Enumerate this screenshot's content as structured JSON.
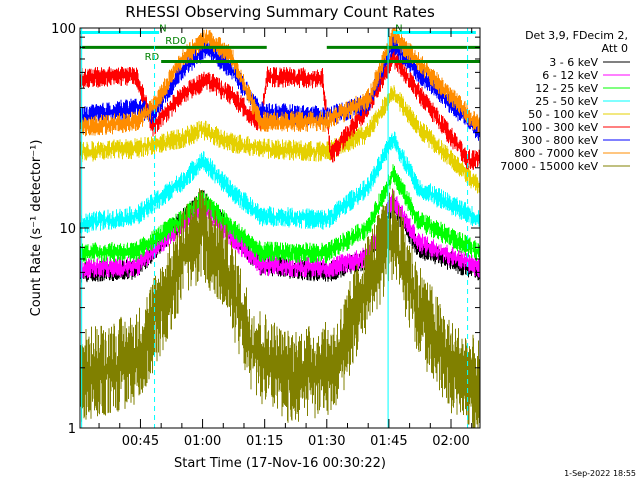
{
  "chart_data": {
    "type": "line",
    "title": "RHESSI Observing Summary Count Rates",
    "xlabel": "Start Time (17-Nov-16 00:30:22)",
    "ylabel": "Count Rate (s⁻¹ detector⁻¹)",
    "y_scale": "log",
    "ylim": [
      1,
      100
    ],
    "y_ticks": [
      {
        "value": 1,
        "label": "1"
      },
      {
        "value": 10,
        "label": "10"
      },
      {
        "value": 100,
        "label": "100"
      }
    ],
    "xlim_minutes": [
      30.4,
      127.0
    ],
    "x_ticks": [
      {
        "minute": 45,
        "label": "00:45"
      },
      {
        "minute": 60,
        "label": "01:00"
      },
      {
        "minute": 75,
        "label": "01:15"
      },
      {
        "minute": 90,
        "label": "01:30"
      },
      {
        "minute": 105,
        "label": "01:45"
      },
      {
        "minute": 120,
        "label": "02:00"
      }
    ],
    "legend_position": "right",
    "legend_header": [
      "Det 3,9, FDecim 2,",
      "Att 0"
    ],
    "series": [
      {
        "name": "3 - 6 keV",
        "color": "#000000",
        "base": 6.0,
        "profile": [
          [
            30.4,
            6.0
          ],
          [
            44,
            6.2
          ],
          [
            55,
            11
          ],
          [
            60,
            14
          ],
          [
            66,
            10
          ],
          [
            74,
            6.5
          ],
          [
            90,
            6.0
          ],
          [
            100,
            7
          ],
          [
            106,
            13
          ],
          [
            112,
            8
          ],
          [
            127,
            6.0
          ]
        ]
      },
      {
        "name": "6 - 12 keV",
        "color": "#ff00ff",
        "profile": [
          [
            30.4,
            6.3
          ],
          [
            44,
            6.4
          ],
          [
            55,
            10.5
          ],
          [
            60,
            13
          ],
          [
            66,
            9.5
          ],
          [
            74,
            6.5
          ],
          [
            90,
            6.3
          ],
          [
            100,
            7.2
          ],
          [
            106,
            14
          ],
          [
            112,
            8.5
          ],
          [
            127,
            6.3
          ]
        ]
      },
      {
        "name": "12 - 25 keV",
        "color": "#00ff00",
        "profile": [
          [
            30.4,
            7.5
          ],
          [
            44,
            7.6
          ],
          [
            55,
            11
          ],
          [
            60,
            14
          ],
          [
            66,
            10.5
          ],
          [
            74,
            7.6
          ],
          [
            90,
            7.5
          ],
          [
            100,
            10
          ],
          [
            106,
            19
          ],
          [
            112,
            11
          ],
          [
            127,
            7.5
          ]
        ]
      },
      {
        "name": "25 - 50 keV",
        "color": "#00ffff",
        "profile": [
          [
            30.4,
            10.5
          ],
          [
            44,
            11.5
          ],
          [
            55,
            17
          ],
          [
            60,
            22
          ],
          [
            66,
            16
          ],
          [
            74,
            11.5
          ],
          [
            90,
            11
          ],
          [
            100,
            16
          ],
          [
            106,
            28
          ],
          [
            112,
            16
          ],
          [
            127,
            11
          ]
        ]
      },
      {
        "name": "50 - 100 keV",
        "color": "#e5d000",
        "profile": [
          [
            30.4,
            24
          ],
          [
            44,
            25
          ],
          [
            55,
            28
          ],
          [
            60,
            31
          ],
          [
            66,
            27
          ],
          [
            74,
            25
          ],
          [
            90,
            24
          ],
          [
            100,
            30
          ],
          [
            106,
            48
          ],
          [
            112,
            32
          ],
          [
            127,
            16
          ]
        ]
      },
      {
        "name": "100 - 300 keV",
        "color": "#ff0000",
        "profile": [
          [
            30.4,
            56
          ],
          [
            44,
            58
          ],
          [
            48,
            32
          ],
          [
            55,
            46
          ],
          [
            61,
            55
          ],
          [
            67,
            46
          ],
          [
            74,
            33
          ],
          [
            75.5,
            57
          ],
          [
            89,
            56
          ],
          [
            91,
            23
          ],
          [
            100,
            40
          ],
          [
            106,
            72
          ],
          [
            112,
            48
          ],
          [
            124,
            22
          ]
        ]
      },
      {
        "name": "300 - 800 keV",
        "color": "#0000ff",
        "profile": [
          [
            30.4,
            36
          ],
          [
            44,
            40
          ],
          [
            48,
            37
          ],
          [
            55,
            62
          ],
          [
            61,
            80
          ],
          [
            67,
            62
          ],
          [
            74,
            38
          ],
          [
            90,
            36
          ],
          [
            100,
            42
          ],
          [
            106,
            84
          ],
          [
            112,
            60
          ],
          [
            127,
            30
          ]
        ]
      },
      {
        "name": "800 - 7000 keV",
        "color": "#ff8c00",
        "profile": [
          [
            30.4,
            32
          ],
          [
            44,
            34
          ],
          [
            48,
            40
          ],
          [
            55,
            70
          ],
          [
            61,
            90
          ],
          [
            67,
            72
          ],
          [
            74,
            34
          ],
          [
            90,
            34
          ],
          [
            100,
            44
          ],
          [
            106,
            92
          ],
          [
            112,
            68
          ],
          [
            127,
            32
          ]
        ]
      },
      {
        "name": "7000 - 15000 keV",
        "color": "#808000",
        "profile": [
          [
            30.4,
            1.8
          ],
          [
            44,
            2.2
          ],
          [
            50,
            4
          ],
          [
            56,
            8
          ],
          [
            60,
            9.5
          ],
          [
            66,
            6
          ],
          [
            72,
            2.5
          ],
          [
            80,
            1.8
          ],
          [
            92,
            2
          ],
          [
            100,
            5.5
          ],
          [
            106,
            9.5
          ],
          [
            112,
            4
          ],
          [
            120,
            2
          ],
          [
            127,
            1.6
          ]
        ]
      }
    ],
    "flag_lines": [
      {
        "color": "#00ffff",
        "level": 95,
        "segments": [
          [
            30.4,
            49.5
          ],
          [
            106,
            126
          ]
        ]
      },
      {
        "color": "#008000",
        "level": 80,
        "segments": [
          [
            30.4,
            75.5
          ],
          [
            90,
            127
          ]
        ]
      },
      {
        "color": "#008000",
        "level": 68,
        "segments": [
          [
            50,
            127
          ]
        ]
      }
    ],
    "flag_labels": [
      {
        "text": "RD0",
        "color": "#008000",
        "minute": 51,
        "level": 83
      },
      {
        "text": "RD",
        "color": "#008000",
        "minute": 46,
        "level": 69
      },
      {
        "text": "N",
        "color": "#008000",
        "minute": 49.5,
        "level": 96
      },
      {
        "text": "N",
        "color": "#008000",
        "minute": 106.5,
        "level": 96
      }
    ],
    "vertical_markers": [
      {
        "minute": 30.8,
        "color": "#00ffff",
        "style": "solid"
      },
      {
        "minute": 48.4,
        "color": "#00ffff",
        "style": "dashed"
      },
      {
        "minute": 104.8,
        "color": "#00ffff",
        "style": "solid"
      },
      {
        "minute": 124.0,
        "color": "#00ffff",
        "style": "dashed"
      }
    ],
    "footer_date": "1-Sep-2022 18:55"
  }
}
